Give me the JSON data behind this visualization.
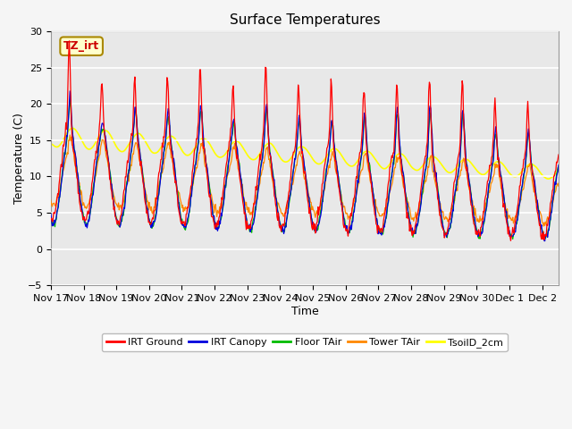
{
  "title": "Surface Temperatures",
  "xlabel": "Time",
  "ylabel": "Temperature (C)",
  "ylim": [
    -5,
    30
  ],
  "start_date": "Nov 17",
  "xtick_labels": [
    "Nov 17",
    "Nov 18",
    "Nov 19",
    "Nov 20",
    "Nov 21",
    "Nov 22",
    "Nov 23",
    "Nov 24",
    "Nov 25",
    "Nov 26",
    "Nov 27",
    "Nov 28",
    "Nov 29",
    "Nov 30",
    "Dec 1",
    "Dec 2"
  ],
  "colors": {
    "IRT Ground": "#ff0000",
    "IRT Canopy": "#0000dd",
    "Floor TAir": "#00bb00",
    "Tower TAir": "#ff8800",
    "TsoilD_2cm": "#ffff00"
  },
  "legend_labels": [
    "IRT Ground",
    "IRT Canopy",
    "Floor TAir",
    "Tower TAir",
    "TsoilD_2cm"
  ],
  "annotation_text": "TZ_irt",
  "annotation_bg": "#ffffcc",
  "annotation_border": "#aa8800",
  "plot_bg": "#e8e8e8",
  "title_fontsize": 11,
  "axis_label_fontsize": 9,
  "tick_fontsize": 8
}
